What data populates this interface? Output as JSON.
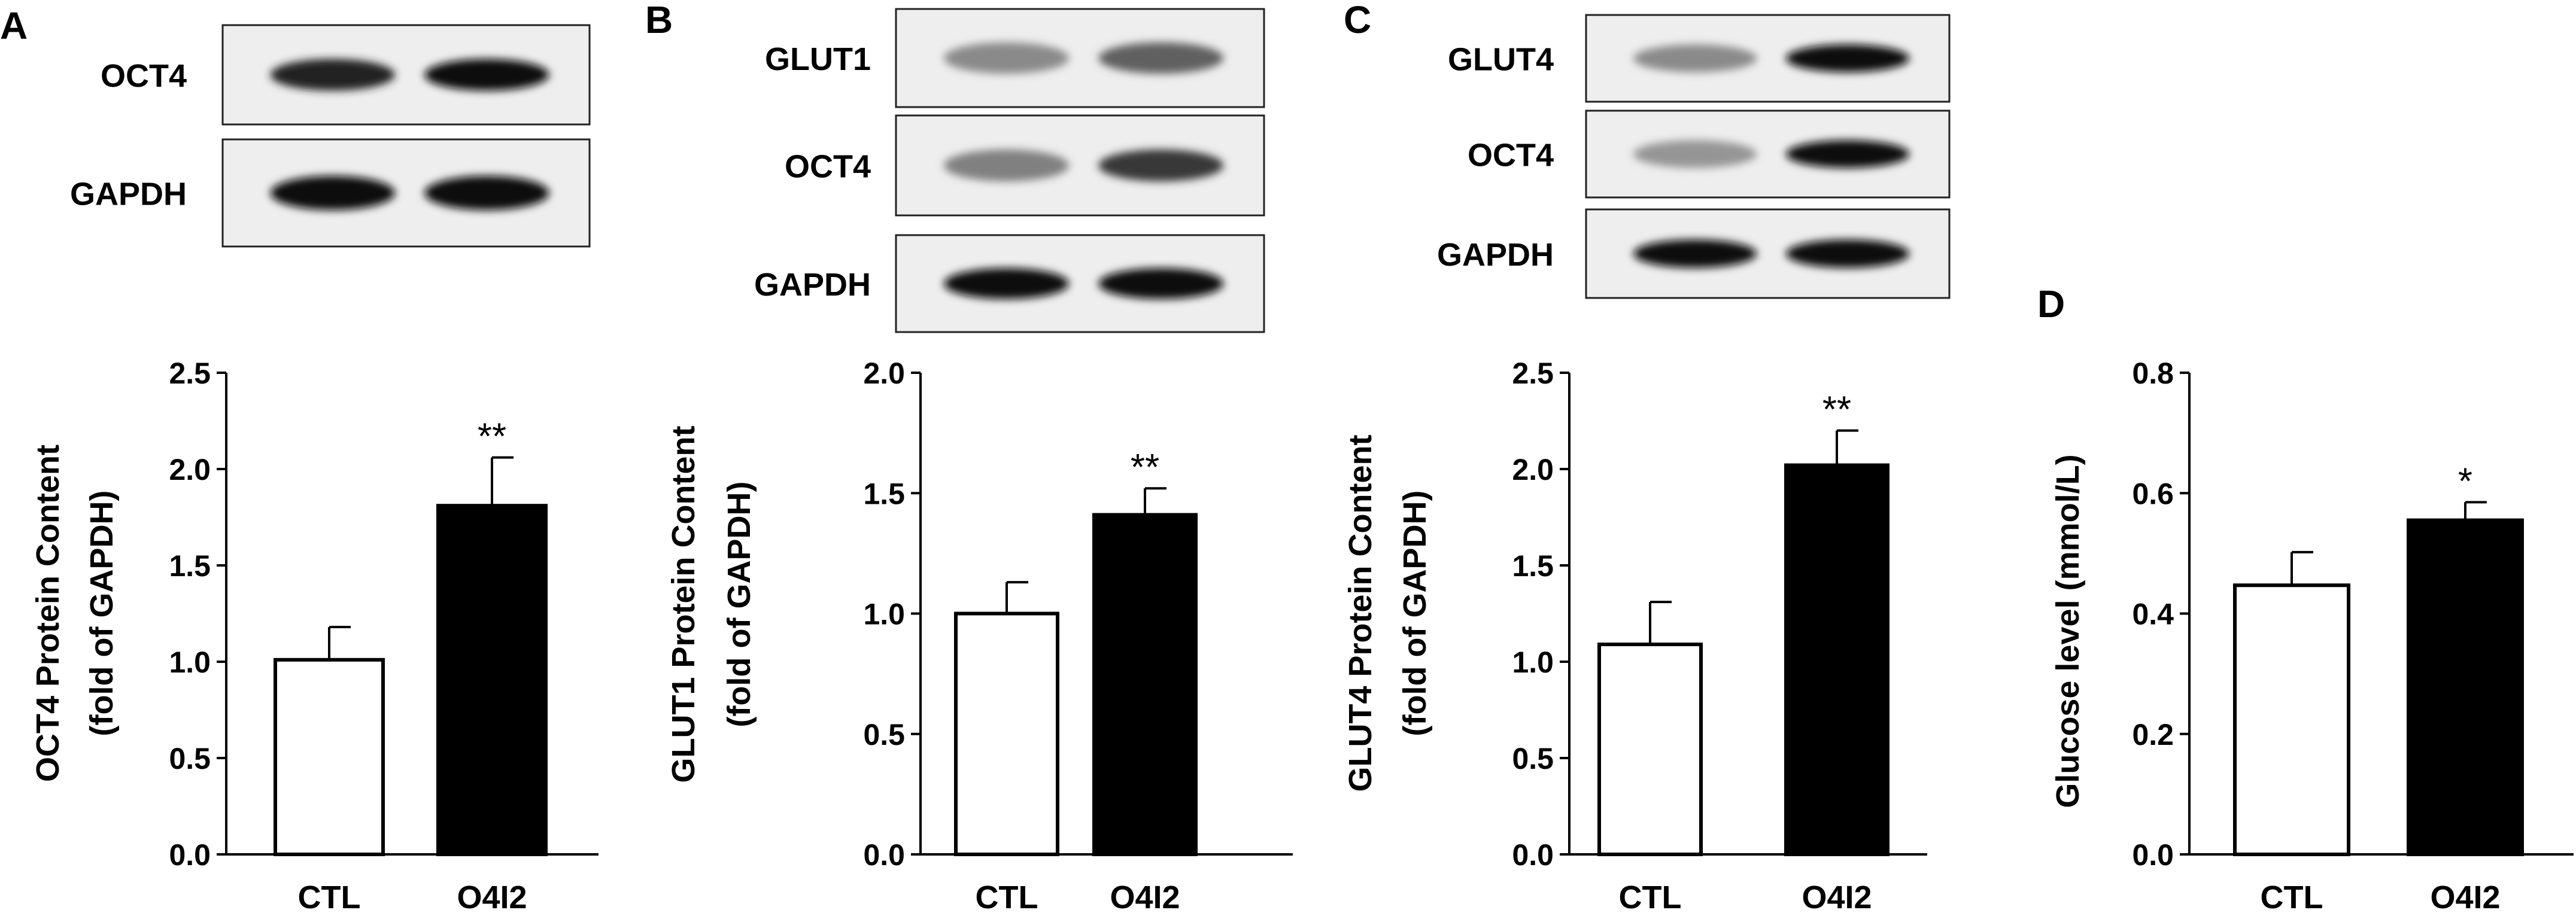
{
  "chart_data": [
    {
      "panel": "A",
      "type": "bar",
      "blot": {
        "bands": [
          {
            "label": "OCT4",
            "intensity": [
              0.85,
              0.95
            ]
          },
          {
            "label": "GAPDH",
            "intensity": [
              0.95,
              0.95
            ]
          }
        ]
      },
      "categories": [
        "CTL",
        "O4I2"
      ],
      "values": [
        1.01,
        1.81
      ],
      "errors": [
        0.17,
        0.25
      ],
      "significance": [
        "",
        "**"
      ],
      "fills": [
        "#ffffff",
        "#000000"
      ],
      "ylabel_lines": [
        "OCT4 Protein Content",
        "(fold of GAPDH)"
      ],
      "ylim": [
        0,
        2.5
      ],
      "yticks": [
        "0.0",
        "0.5",
        "1.0",
        "1.5",
        "2.0",
        "2.5"
      ]
    },
    {
      "panel": "B",
      "type": "bar",
      "blot": {
        "bands": [
          {
            "label": "GLUT1",
            "intensity": [
              0.35,
              0.55
            ]
          },
          {
            "label": "OCT4",
            "intensity": [
              0.4,
              0.75
            ]
          },
          {
            "label": "GAPDH",
            "intensity": [
              0.95,
              0.95
            ]
          }
        ]
      },
      "categories": [
        "CTL",
        "O4I2"
      ],
      "values": [
        1.0,
        1.41
      ],
      "errors": [
        0.13,
        0.11
      ],
      "significance": [
        "",
        "**"
      ],
      "fills": [
        "#ffffff",
        "#000000"
      ],
      "ylabel_lines": [
        "GLUT1 Protein Content",
        "(fold of GAPDH)"
      ],
      "ylim": [
        0,
        2.0
      ],
      "yticks": [
        "0.0",
        "0.5",
        "1.0",
        "1.5",
        "2.0"
      ]
    },
    {
      "panel": "C",
      "type": "bar",
      "blot": {
        "bands": [
          {
            "label": "GLUT4",
            "intensity": [
              0.35,
              0.95
            ]
          },
          {
            "label": "OCT4",
            "intensity": [
              0.3,
              0.95
            ]
          },
          {
            "label": "GAPDH",
            "intensity": [
              0.95,
              0.95
            ]
          }
        ]
      },
      "categories": [
        "CTL",
        "O4I2"
      ],
      "values": [
        1.09,
        2.02
      ],
      "errors": [
        0.22,
        0.18
      ],
      "significance": [
        "",
        "**"
      ],
      "fills": [
        "#ffffff",
        "#000000"
      ],
      "ylabel_lines": [
        "GLUT4 Protein Content",
        "(fold of GAPDH)"
      ],
      "ylim": [
        0,
        2.5
      ],
      "yticks": [
        "0.0",
        "0.5",
        "1.0",
        "1.5",
        "2.0",
        "2.5"
      ]
    },
    {
      "panel": "D",
      "type": "bar",
      "categories": [
        "CTL",
        "O4I2"
      ],
      "values": [
        0.447,
        0.555
      ],
      "errors": [
        0.055,
        0.03
      ],
      "significance": [
        "",
        "*"
      ],
      "fills": [
        "#ffffff",
        "#000000"
      ],
      "ylabel_lines": [
        "Glucose level (mmol/L)"
      ],
      "ylim": [
        0,
        0.8
      ],
      "yticks": [
        "0.0",
        "0.2",
        "0.4",
        "0.6",
        "0.8"
      ]
    }
  ]
}
